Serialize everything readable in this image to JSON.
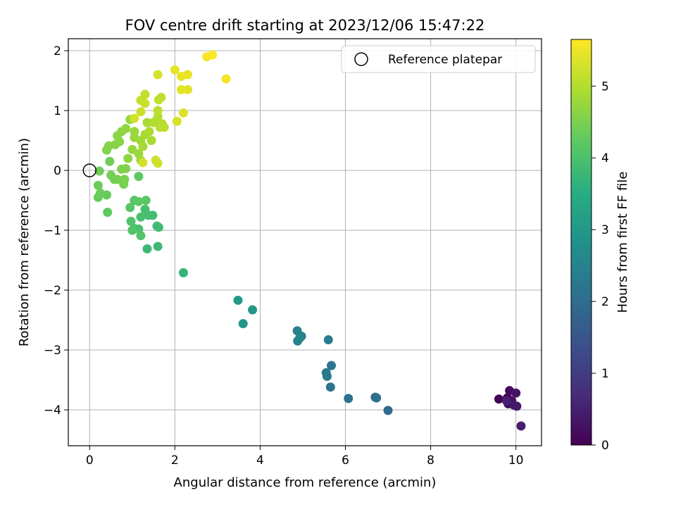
{
  "chart_data": {
    "type": "scatter",
    "title": "FOV centre drift starting at 2023/12/06 15:47:22",
    "xlabel": "Angular distance from reference (arcmin)",
    "ylabel": "Rotation from reference (arcmin)",
    "xlim": [
      -0.5,
      10.6
    ],
    "ylim": [
      -4.6,
      2.2
    ],
    "xticks": [
      0,
      2,
      4,
      6,
      8,
      10
    ],
    "xtick_labels": [
      "0",
      "2",
      "4",
      "6",
      "8",
      "10"
    ],
    "yticks": [
      2,
      1,
      0,
      -1,
      -2,
      -3,
      -4
    ],
    "ytick_labels": [
      "2",
      "1",
      "0",
      "−1",
      "−2",
      "−3",
      "−4"
    ],
    "grid": true,
    "legend": {
      "position": "top-right",
      "label": "Reference platepar"
    },
    "reference_point": {
      "x": 0,
      "y": 0
    },
    "colorbar": {
      "label": "Hours from first FF file",
      "range": [
        0,
        5.65
      ],
      "ticks": [
        0,
        1,
        2,
        3,
        4,
        5
      ],
      "tick_labels": [
        "0",
        "1",
        "2",
        "3",
        "4",
        "5"
      ],
      "colormap": "viridis"
    },
    "points": [
      [
        9.6,
        -3.82,
        0.05
      ],
      [
        9.8,
        -3.8,
        0.1
      ],
      [
        9.85,
        -3.68,
        0.15
      ],
      [
        9.82,
        -3.9,
        0.2
      ],
      [
        9.9,
        -3.85,
        0.25
      ],
      [
        10.0,
        -3.72,
        0.3
      ],
      [
        9.95,
        -3.92,
        0.35
      ],
      [
        10.02,
        -3.94,
        0.4
      ],
      [
        10.12,
        -4.27,
        0.45
      ],
      [
        9.78,
        -3.85,
        0.5
      ],
      [
        7.0,
        -4.01,
        1.95
      ],
      [
        6.7,
        -3.79,
        2.0
      ],
      [
        6.73,
        -3.8,
        2.05
      ],
      [
        6.07,
        -3.81,
        2.1
      ],
      [
        5.65,
        -3.62,
        2.15
      ],
      [
        5.67,
        -3.26,
        2.2
      ],
      [
        5.55,
        -3.38,
        2.25
      ],
      [
        5.57,
        -3.44,
        2.3
      ],
      [
        5.6,
        -2.83,
        2.35
      ],
      [
        4.97,
        -2.77,
        2.4
      ],
      [
        4.87,
        -2.68,
        2.45
      ],
      [
        4.88,
        -2.85,
        2.5
      ],
      [
        4.93,
        -2.8,
        2.55
      ],
      [
        3.6,
        -2.56,
        2.95
      ],
      [
        3.82,
        -2.33,
        3.0
      ],
      [
        3.48,
        -2.17,
        3.05
      ],
      [
        2.2,
        -1.71,
        3.7
      ],
      [
        1.6,
        -1.27,
        3.8
      ],
      [
        1.35,
        -1.31,
        3.82
      ],
      [
        1.62,
        -0.95,
        3.85
      ],
      [
        1.58,
        -0.93,
        3.87
      ],
      [
        1.48,
        -0.75,
        3.9
      ],
      [
        1.38,
        -0.75,
        3.92
      ],
      [
        1.3,
        -0.65,
        3.95
      ],
      [
        1.2,
        -0.78,
        3.97
      ],
      [
        1.15,
        -0.98,
        4.0
      ],
      [
        1.05,
        -0.97,
        4.02
      ],
      [
        0.97,
        -0.85,
        4.05
      ],
      [
        1.0,
        -1.0,
        4.07
      ],
      [
        1.2,
        -1.09,
        4.1
      ],
      [
        0.95,
        -0.62,
        4.12
      ],
      [
        1.05,
        -0.5,
        4.15
      ],
      [
        1.32,
        -0.5,
        4.17
      ],
      [
        1.15,
        -0.52,
        4.2
      ],
      [
        1.15,
        -0.1,
        4.22
      ],
      [
        0.42,
        -0.7,
        4.25
      ],
      [
        0.4,
        -0.41,
        4.3
      ],
      [
        0.2,
        -0.45,
        4.32
      ],
      [
        0.25,
        -0.38,
        4.34
      ],
      [
        0.2,
        -0.25,
        4.36
      ],
      [
        0.23,
        -0.01,
        4.38
      ],
      [
        0.47,
        0.15,
        4.4
      ],
      [
        0.58,
        -0.15,
        4.42
      ],
      [
        0.5,
        -0.08,
        4.44
      ],
      [
        0.65,
        -0.15,
        4.46
      ],
      [
        0.8,
        -0.23,
        4.48
      ],
      [
        0.82,
        -0.15,
        4.5
      ],
      [
        0.75,
        0.02,
        4.52
      ],
      [
        0.85,
        0.03,
        4.54
      ],
      [
        0.4,
        0.34,
        4.56
      ],
      [
        0.45,
        0.41,
        4.58
      ],
      [
        0.6,
        0.43,
        4.6
      ],
      [
        0.7,
        0.48,
        4.62
      ],
      [
        0.65,
        0.58,
        4.64
      ],
      [
        0.75,
        0.65,
        4.66
      ],
      [
        0.9,
        0.2,
        4.68
      ],
      [
        0.85,
        0.7,
        4.7
      ],
      [
        0.95,
        0.85,
        4.72
      ],
      [
        1.0,
        0.35,
        4.74
      ],
      [
        1.05,
        0.55,
        4.76
      ],
      [
        1.05,
        0.65,
        4.78
      ],
      [
        1.15,
        0.28,
        4.8
      ],
      [
        1.2,
        0.17,
        4.82
      ],
      [
        1.2,
        0.5,
        4.84
      ],
      [
        1.25,
        0.4,
        4.86
      ],
      [
        1.3,
        0.6,
        4.88
      ],
      [
        1.35,
        0.8,
        4.9
      ],
      [
        1.45,
        0.5,
        4.92
      ],
      [
        1.4,
        0.65,
        4.94
      ],
      [
        1.5,
        0.8,
        4.96
      ],
      [
        1.55,
        0.82,
        4.98
      ],
      [
        1.6,
        0.9,
        5.0
      ],
      [
        1.65,
        0.72,
        5.02
      ],
      [
        1.7,
        0.78,
        5.04
      ],
      [
        1.75,
        0.72,
        5.06
      ],
      [
        1.6,
        1.0,
        5.08
      ],
      [
        1.62,
        1.18,
        5.1
      ],
      [
        1.68,
        1.22,
        5.12
      ],
      [
        1.3,
        1.27,
        5.14
      ],
      [
        1.2,
        1.17,
        5.16
      ],
      [
        1.3,
        1.12,
        5.18
      ],
      [
        1.2,
        0.98,
        5.2
      ],
      [
        1.55,
        0.17,
        5.22
      ],
      [
        1.6,
        0.12,
        5.24
      ],
      [
        1.25,
        0.13,
        5.26
      ],
      [
        1.05,
        0.87,
        5.28
      ],
      [
        1.6,
        1.6,
        5.3
      ],
      [
        2.05,
        0.82,
        5.32
      ],
      [
        2.2,
        0.96,
        5.36
      ],
      [
        2.15,
        1.35,
        5.4
      ],
      [
        2.3,
        1.35,
        5.42
      ],
      [
        2.0,
        1.68,
        5.44
      ],
      [
        2.15,
        1.57,
        5.46
      ],
      [
        2.3,
        1.6,
        5.48
      ],
      [
        3.2,
        1.53,
        5.55
      ],
      [
        2.75,
        1.9,
        5.58
      ],
      [
        2.88,
        1.93,
        5.62
      ]
    ]
  }
}
